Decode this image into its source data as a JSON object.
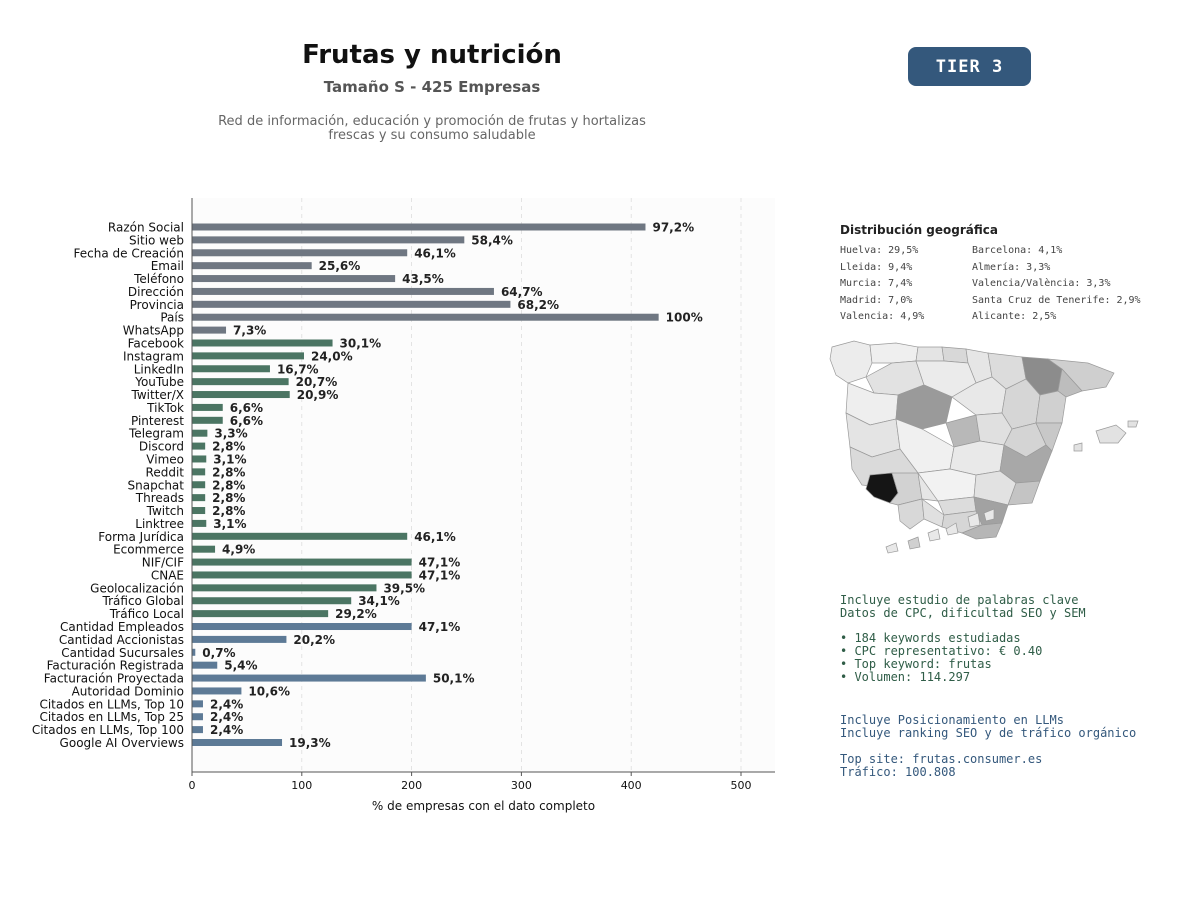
{
  "header": {
    "title": "Frutas y nutrición",
    "subtitle": "Tamaño S - 425 Empresas",
    "description_line1": "Red de información, educación y promoción de frutas y hortalizas",
    "description_line2": "frescas y su consumo saludable",
    "tier": "TIER 3"
  },
  "chart_data": {
    "type": "bar",
    "orientation": "horizontal",
    "xlabel": "% de empresas con el dato completo",
    "xlim": [
      0,
      530
    ],
    "xticks": [
      0,
      100,
      200,
      300,
      400,
      500
    ],
    "grid": "vertical dashed",
    "colors": {
      "grey": "#6f7782",
      "green": "#4b7563",
      "blue": "#5d7a96"
    },
    "categories": [
      "Razón Social",
      "Sitio web",
      "Fecha de Creación",
      "Email",
      "Teléfono",
      "Dirección",
      "Provincia",
      "País",
      "WhatsApp",
      "Facebook",
      "Instagram",
      "LinkedIn",
      "YouTube",
      "Twitter/X",
      "TikTok",
      "Pinterest",
      "Telegram",
      "Discord",
      "Vimeo",
      "Reddit",
      "Snapchat",
      "Threads",
      "Twitch",
      "Linktree",
      "Forma Jurídica",
      "Ecommerce",
      "NIF/CIF",
      "CNAE",
      "Geolocalización",
      "Tráfico Global",
      "Tráfico Local",
      "Cantidad Empleados",
      "Cantidad Accionistas",
      "Cantidad Sucursales",
      "Facturación Registrada",
      "Facturación Proyectada",
      "Autoridad Dominio",
      "Citados en LLMs, Top 10",
      "Citados en LLMs, Top 25",
      "Citados en LLMs, Top 100",
      "Google AI Overviews"
    ],
    "values": [
      413,
      248,
      196,
      109,
      185,
      275,
      290,
      425,
      31,
      128,
      102,
      71,
      88,
      89,
      28,
      28,
      14,
      12,
      13,
      12,
      12,
      12,
      12,
      13,
      196,
      21,
      200,
      200,
      168,
      145,
      124,
      200,
      86,
      3,
      23,
      213,
      45,
      10,
      10,
      10,
      82
    ],
    "labels": [
      "97,2%",
      "58,4%",
      "46,1%",
      "25,6%",
      "43,5%",
      "64,7%",
      "68,2%",
      "100%",
      "7,3%",
      "30,1%",
      "24,0%",
      "16,7%",
      "20,7%",
      "20,9%",
      "6,6%",
      "6,6%",
      "3,3%",
      "2,8%",
      "3,1%",
      "2,8%",
      "2,8%",
      "2,8%",
      "2,8%",
      "3,1%",
      "46,1%",
      "4,9%",
      "47,1%",
      "47,1%",
      "39,5%",
      "34,1%",
      "29,2%",
      "47,1%",
      "20,2%",
      "0,7%",
      "5,4%",
      "50,1%",
      "10,6%",
      "2,4%",
      "2,4%",
      "2,4%",
      "19,3%"
    ],
    "bar_colors": [
      "grey",
      "grey",
      "grey",
      "grey",
      "grey",
      "grey",
      "grey",
      "grey",
      "grey",
      "green",
      "green",
      "green",
      "green",
      "green",
      "green",
      "green",
      "green",
      "green",
      "green",
      "green",
      "green",
      "green",
      "green",
      "green",
      "green",
      "green",
      "green",
      "green",
      "green",
      "green",
      "green",
      "blue",
      "blue",
      "blue",
      "blue",
      "blue",
      "blue",
      "blue",
      "blue",
      "blue",
      "blue"
    ]
  },
  "geo": {
    "title": "Distribución geográfica",
    "items": [
      "Huelva: 29,5%",
      "Lleida: 9,4%",
      "Murcia: 7,4%",
      "Madrid: 7,0%",
      "Valencia: 4,9%",
      "Barcelona: 4,1%",
      "Almería: 3,3%",
      "Valencia/València: 3,3%",
      "Santa Cruz de Tenerife: 2,9%",
      "Alicante: 2,5%"
    ]
  },
  "seo": {
    "line1": "Incluye estudio de palabras clave",
    "line2": "Datos de CPC, dificultad SEO y SEM",
    "bullet1": "• 184 keywords estudiadas",
    "bullet2": "• CPC representativo: € 0.40",
    "bullet3": "• Top keyword: frutas",
    "bullet4": "• Volumen: 114.297"
  },
  "llm": {
    "line1": "Incluye Posicionamiento en LLMs",
    "line2": "Incluye ranking SEO y de tráfico orgánico",
    "top_site": "Top site: frutas.consumer.es",
    "traffic": "Tráfico: 100.808"
  }
}
